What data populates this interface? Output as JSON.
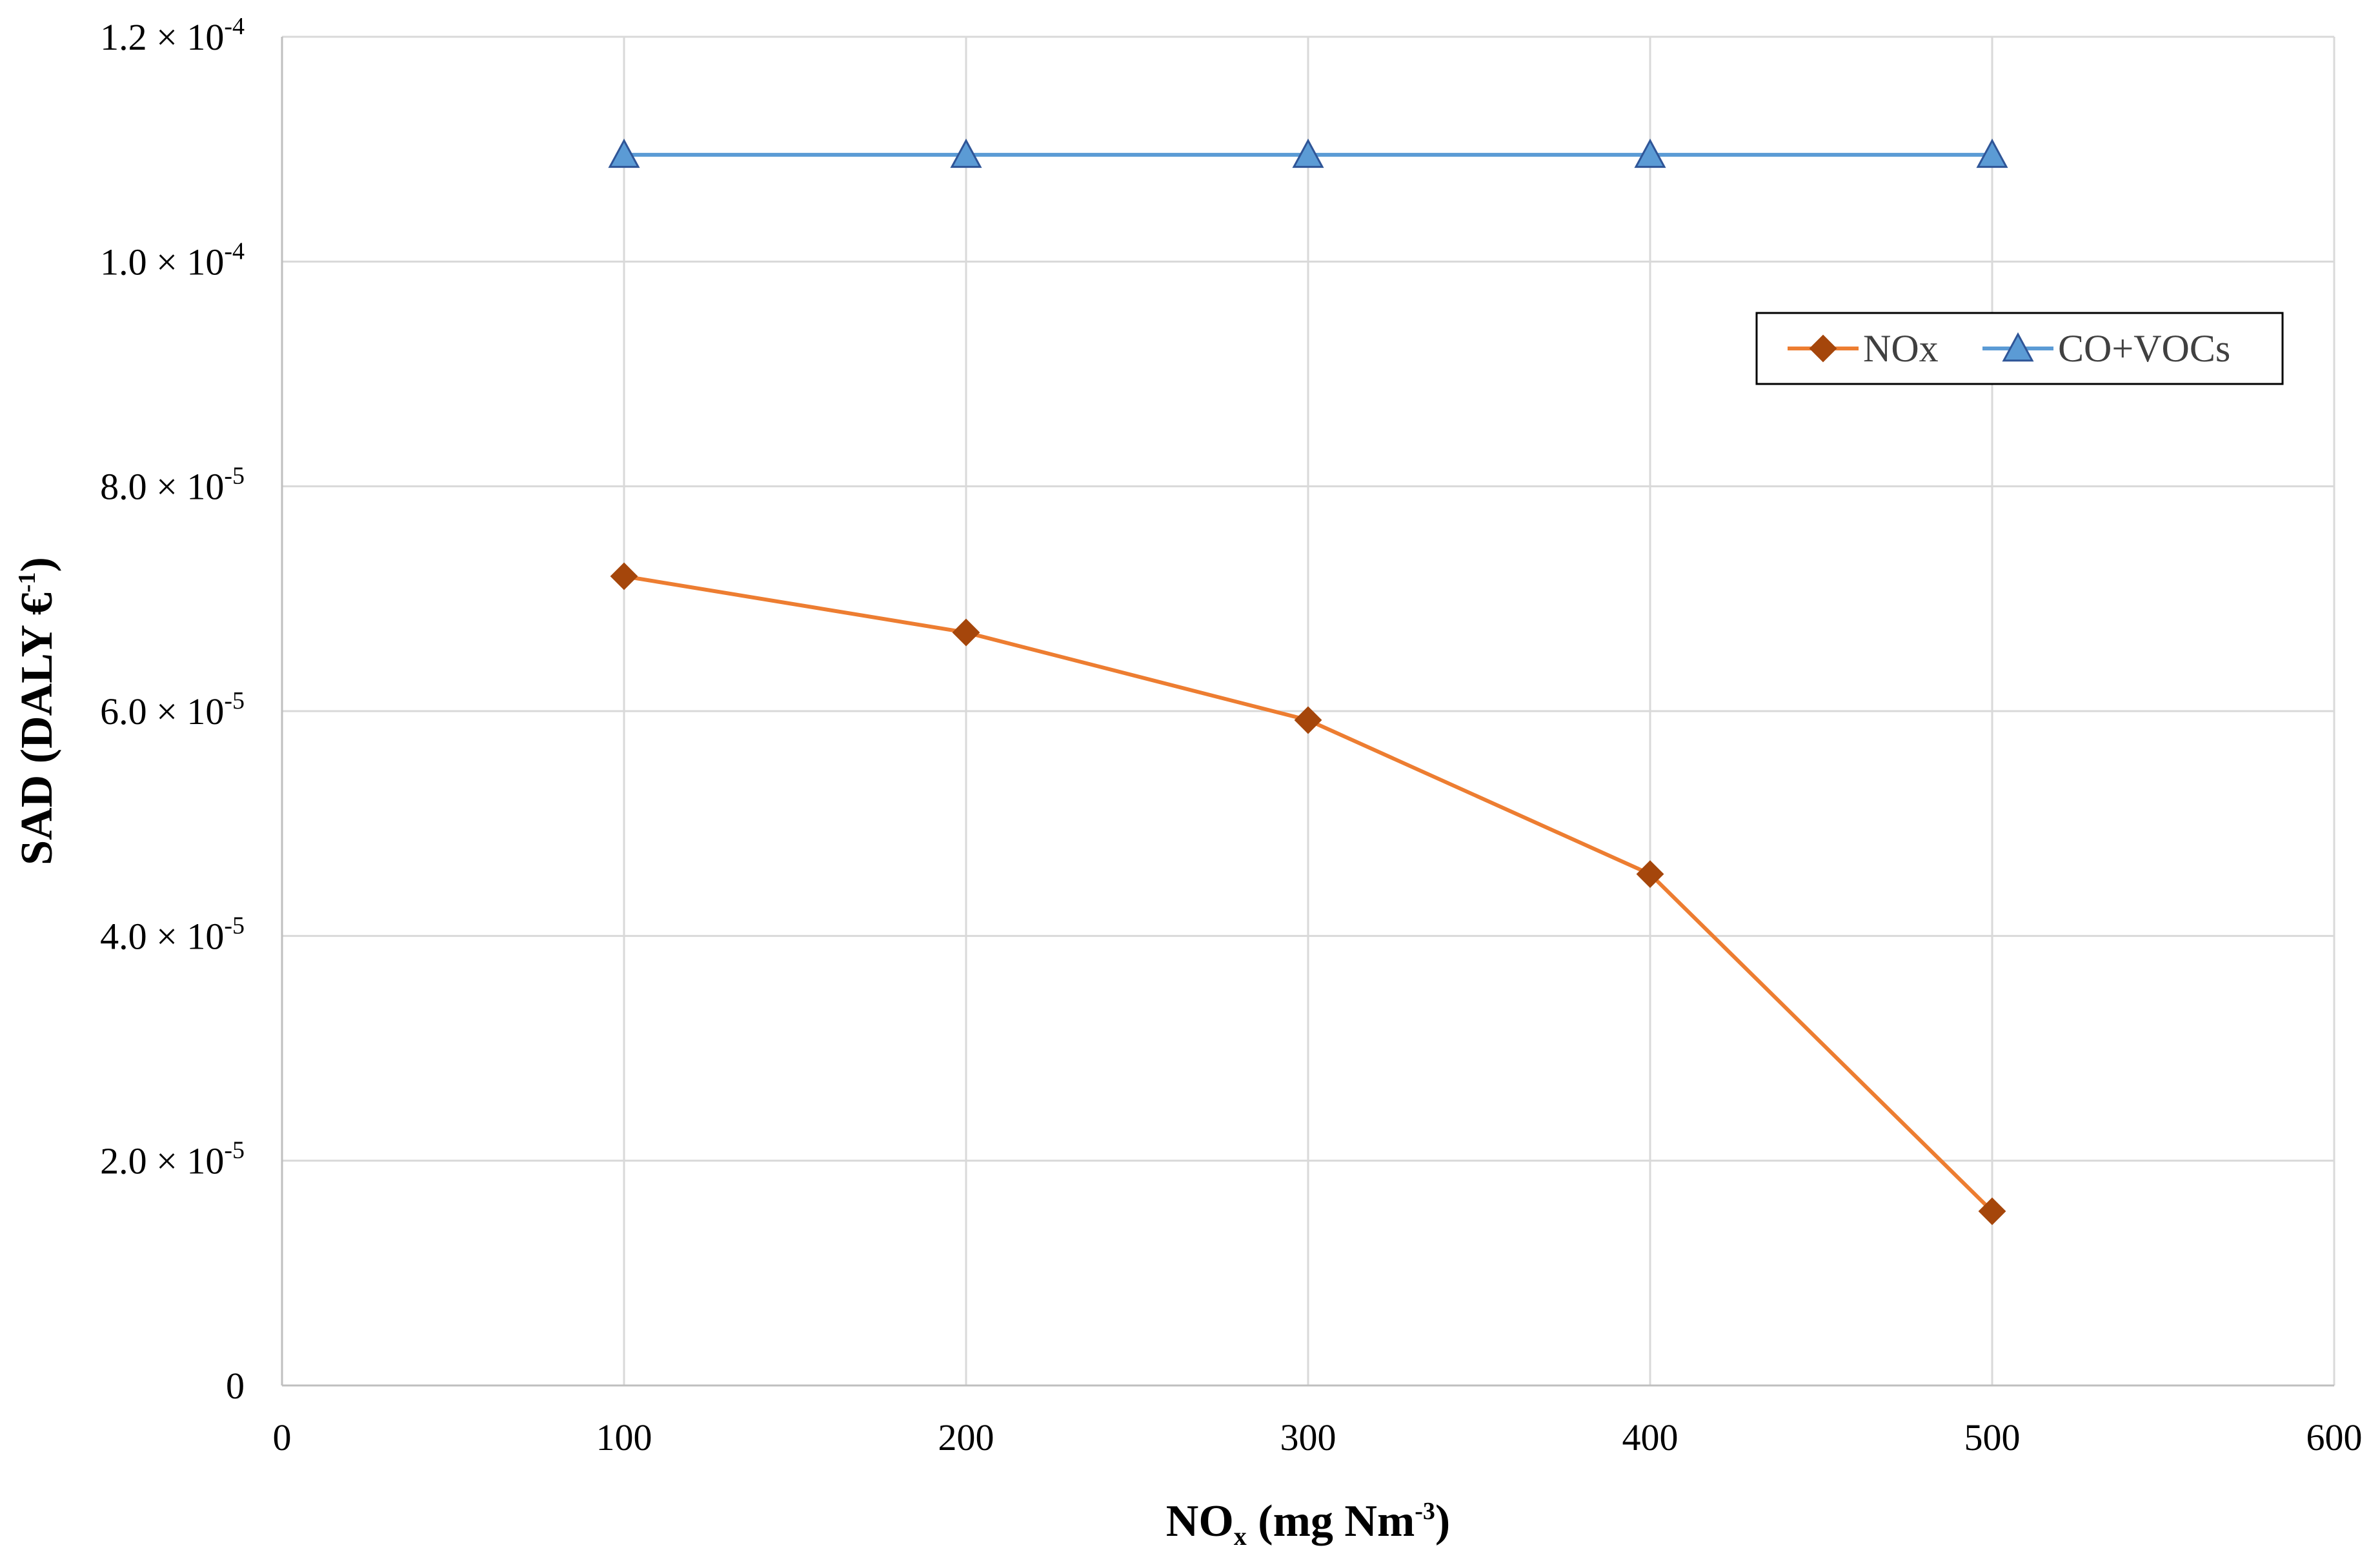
{
  "chart_data": {
    "type": "line",
    "x": [
      100,
      200,
      300,
      400,
      500
    ],
    "series": [
      {
        "name": "NOx",
        "values": [
          7.2e-05,
          6.7e-05,
          5.92e-05,
          4.55e-05,
          1.55e-05
        ],
        "color": "#ED7D31",
        "marker": "diamond",
        "marker_color": "#A5460B"
      },
      {
        "name": "CO+VOCs",
        "values": [
          0.0001095,
          0.0001095,
          0.0001095,
          0.0001095,
          0.0001095
        ],
        "color": "#5B9BD5",
        "marker": "triangle",
        "marker_color": "#5B9BD5"
      }
    ],
    "xlim": [
      0,
      600
    ],
    "ylim": [
      0,
      0.00012
    ],
    "x_ticks": [
      "0",
      "100",
      "200",
      "300",
      "400",
      "500",
      "600"
    ],
    "y_ticks": [
      {
        "value": 0,
        "mantissa": "0",
        "exponent": ""
      },
      {
        "value": 2e-05,
        "mantissa": "2.0",
        "exponent": "-5"
      },
      {
        "value": 4e-05,
        "mantissa": "4.0",
        "exponent": "-5"
      },
      {
        "value": 6e-05,
        "mantissa": "6.0",
        "exponent": "-5"
      },
      {
        "value": 8e-05,
        "mantissa": "8.0",
        "exponent": "-5"
      },
      {
        "value": 0.0001,
        "mantissa": "1.0",
        "exponent": "-4"
      },
      {
        "value": 0.00012,
        "mantissa": "1.2",
        "exponent": "-4"
      }
    ],
    "times_sign": "× 10",
    "xlabel": {
      "main": "NO",
      "sub": "x",
      "rest": " (mg Nm",
      "sup": "-3",
      "end": ")"
    },
    "ylabel": {
      "main": "SAD (DALY €",
      "sup": "-1",
      "end": ")"
    },
    "grid": true,
    "legend_position": "upper-right"
  }
}
